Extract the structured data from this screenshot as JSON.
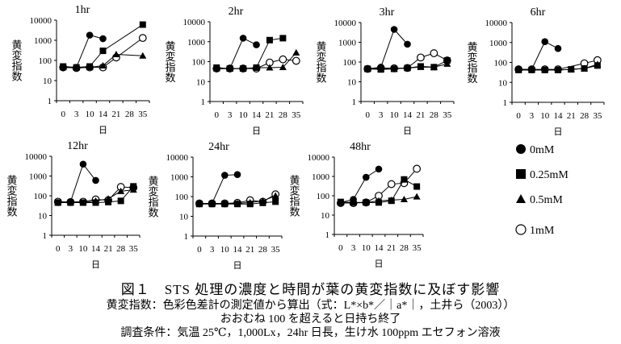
{
  "chart_data": {
    "type": "line",
    "yscale": "log",
    "ylim": [
      1,
      10000
    ],
    "yticks": [
      "1",
      "10",
      "100",
      "1000",
      "10000"
    ],
    "categories": [
      "0",
      "3",
      "10",
      "14",
      "21",
      "28",
      "35"
    ],
    "xlabel": "日",
    "ylabel": "黄変指数",
    "legend": {
      "placement": "right",
      "entries": [
        {
          "name": "0mM",
          "marker": "filled-circle"
        },
        {
          "name": "0.25mM",
          "marker": "filled-square"
        },
        {
          "name": "0.5mM",
          "marker": "filled-triangle"
        },
        {
          "name": "1mM",
          "marker": "open-circle"
        }
      ]
    },
    "panels": [
      {
        "title": "1hr",
        "series": [
          {
            "name": "0mM",
            "values": [
              45,
              45,
              1800,
              1200,
              null,
              null,
              null
            ]
          },
          {
            "name": "0.25mM",
            "values": [
              50,
              45,
              50,
              300,
              null,
              null,
              6000
            ]
          },
          {
            "name": "0.5mM",
            "values": [
              45,
              45,
              45,
              55,
              200,
              null,
              170
            ]
          },
          {
            "name": "1mM",
            "values": [
              45,
              42,
              45,
              45,
              140,
              null,
              1300
            ]
          }
        ]
      },
      {
        "title": "2hr",
        "series": [
          {
            "name": "0mM",
            "values": [
              45,
              45,
              1500,
              700,
              null,
              null,
              null
            ]
          },
          {
            "name": "0.25mM",
            "values": [
              50,
              45,
              45,
              50,
              1200,
              1500,
              null
            ]
          },
          {
            "name": "0.5mM",
            "values": [
              45,
              45,
              45,
              50,
              50,
              52,
              280
            ]
          },
          {
            "name": "1mM",
            "values": [
              45,
              45,
              45,
              45,
              90,
              130,
              110
            ]
          }
        ]
      },
      {
        "title": "3hr",
        "series": [
          {
            "name": "0mM",
            "values": [
              45,
              55,
              4500,
              800,
              null,
              null,
              null
            ]
          },
          {
            "name": "0.25mM",
            "values": [
              45,
              42,
              45,
              50,
              60,
              55,
              120
            ]
          },
          {
            "name": "0.5mM",
            "values": [
              45,
              45,
              45,
              50,
              55,
              55,
              80
            ]
          },
          {
            "name": "1mM",
            "values": [
              45,
              50,
              48,
              50,
              170,
              280,
              120
            ]
          }
        ]
      },
      {
        "title": "6hr",
        "series": [
          {
            "name": "0mM",
            "values": [
              45,
              45,
              1100,
              500,
              null,
              null,
              null
            ]
          },
          {
            "name": "0.25mM",
            "values": [
              42,
              42,
              42,
              42,
              45,
              50,
              70
            ]
          },
          {
            "name": "0.5mM",
            "values": [
              42,
              42,
              42,
              42,
              45,
              50,
              80
            ]
          },
          {
            "name": "1mM",
            "values": [
              45,
              45,
              45,
              45,
              null,
              90,
              130
            ]
          }
        ]
      },
      {
        "title": "12hr",
        "series": [
          {
            "name": "0mM",
            "values": [
              45,
              50,
              4000,
              600,
              null,
              null,
              null
            ]
          },
          {
            "name": "0.25mM",
            "values": [
              45,
              45,
              45,
              45,
              48,
              55,
              300
            ]
          },
          {
            "name": "0.5mM",
            "values": [
              45,
              45,
              45,
              55,
              70,
              170,
              200
            ]
          },
          {
            "name": "1mM",
            "values": [
              50,
              48,
              50,
              65,
              60,
              280,
              260
            ]
          }
        ]
      },
      {
        "title": "24hr",
        "series": [
          {
            "name": "0mM",
            "values": [
              45,
              45,
              1200,
              1300,
              null,
              null,
              null
            ]
          },
          {
            "name": "0.25mM",
            "values": [
              42,
              42,
              42,
              42,
              42,
              48,
              55
            ]
          },
          {
            "name": "0.5mM",
            "values": [
              45,
              45,
              45,
              45,
              50,
              60,
              110
            ]
          },
          {
            "name": "1mM",
            "values": [
              45,
              45,
              45,
              48,
              65,
              55,
              130
            ]
          }
        ]
      },
      {
        "title": "48hr",
        "series": [
          {
            "name": "0mM",
            "values": [
              45,
              65,
              900,
              2400,
              null,
              null,
              null
            ]
          },
          {
            "name": "0.25mM",
            "values": [
              48,
              45,
              45,
              45,
              55,
              700,
              300
            ]
          },
          {
            "name": "0.5mM",
            "values": [
              45,
              45,
              45,
              55,
              60,
              65,
              90
            ]
          },
          {
            "name": "1mM",
            "values": [
              42,
              42,
              45,
              100,
              400,
              450,
              2500
            ]
          }
        ]
      }
    ]
  },
  "caption": {
    "title": "図１　STS 処理の濃度と時間が葉の黄変指数に及ぼす影響",
    "line1": "黄変指数：色彩色差計の測定値から算出（式：L*×b*／｜a*｜，土井ら（2003））",
    "line2": "おおむね 100 を超えると日持ち終了",
    "line3": "調査条件：気温 25℃，1,000Lx，24hr 日長，生け水 100ppm エセフォン溶液"
  }
}
